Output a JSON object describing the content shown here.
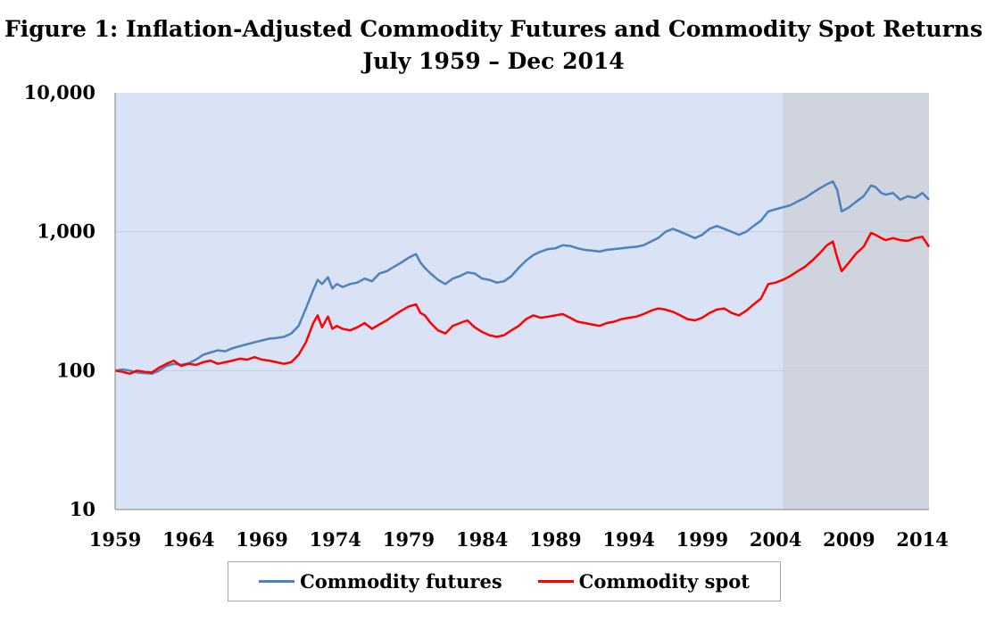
{
  "chart_data": {
    "type": "line",
    "title": "Figure 1: Inflation-Adjusted Commodity Futures and Commodity Spot Returns",
    "subtitle": "July 1959 – Dec 2014",
    "xlabel": "",
    "ylabel": "",
    "yscale": "log",
    "ylim": [
      10,
      10000
    ],
    "xlim": [
      1959.5,
      2014.95
    ],
    "y_ticks": [
      "10",
      "100",
      "1,000",
      "10,000"
    ],
    "y_tick_values": [
      10,
      100,
      1000,
      10000
    ],
    "x_ticks": [
      "1959",
      "1964",
      "1969",
      "1974",
      "1979",
      "1984",
      "1989",
      "1994",
      "1999",
      "2004",
      "2009",
      "2014"
    ],
    "x_tick_values": [
      1959.5,
      1964.5,
      1969.5,
      1974.5,
      1979.5,
      1984.5,
      1989.5,
      1994.5,
      1999.5,
      2004.5,
      2009.5,
      2014.5
    ],
    "shaded_region": {
      "from": 2005,
      "to": 2014.95,
      "color": "#cfd4df"
    },
    "plot_background": "#dae3f5",
    "gridlines": true,
    "legend_position": "bottom",
    "series": [
      {
        "name": "Commodity futures",
        "color": "#4f81bd",
        "x": [
          1959.5,
          1960.0,
          1960.5,
          1961.0,
          1961.5,
          1962.0,
          1962.5,
          1963.0,
          1963.5,
          1964.0,
          1964.5,
          1965.0,
          1965.5,
          1966.0,
          1966.5,
          1967.0,
          1967.5,
          1968.0,
          1968.5,
          1969.0,
          1969.5,
          1970.0,
          1970.5,
          1971.0,
          1971.5,
          1972.0,
          1972.5,
          1973.0,
          1973.3,
          1973.6,
          1974.0,
          1974.3,
          1974.6,
          1975.0,
          1975.5,
          1976.0,
          1976.5,
          1977.0,
          1977.5,
          1978.0,
          1978.5,
          1979.0,
          1979.5,
          1980.0,
          1980.3,
          1980.6,
          1981.0,
          1981.5,
          1982.0,
          1982.5,
          1983.0,
          1983.5,
          1984.0,
          1984.5,
          1985.0,
          1985.5,
          1986.0,
          1986.5,
          1987.0,
          1987.5,
          1988.0,
          1988.5,
          1989.0,
          1989.5,
          1990.0,
          1990.5,
          1991.0,
          1991.5,
          1992.0,
          1992.5,
          1993.0,
          1993.5,
          1994.0,
          1994.5,
          1995.0,
          1995.5,
          1996.0,
          1996.5,
          1997.0,
          1997.5,
          1998.0,
          1998.5,
          1999.0,
          1999.5,
          2000.0,
          2000.5,
          2001.0,
          2001.5,
          2002.0,
          2002.5,
          2003.0,
          2003.5,
          2004.0,
          2004.5,
          2005.0,
          2005.5,
          2006.0,
          2006.5,
          2007.0,
          2007.5,
          2008.0,
          2008.4,
          2008.7,
          2009.0,
          2009.5,
          2010.0,
          2010.5,
          2011.0,
          2011.3,
          2011.7,
          2012.0,
          2012.5,
          2013.0,
          2013.5,
          2014.0,
          2014.5,
          2014.95
        ],
        "values": [
          100,
          102,
          100,
          97,
          96,
          95,
          100,
          108,
          112,
          110,
          113,
          120,
          130,
          135,
          140,
          138,
          145,
          150,
          155,
          160,
          165,
          170,
          172,
          175,
          185,
          210,
          280,
          380,
          450,
          420,
          470,
          390,
          420,
          400,
          420,
          430,
          460,
          440,
          500,
          520,
          560,
          600,
          650,
          690,
          600,
          550,
          500,
          450,
          420,
          460,
          480,
          510,
          500,
          460,
          450,
          430,
          440,
          480,
          550,
          620,
          680,
          720,
          750,
          760,
          800,
          790,
          760,
          740,
          730,
          720,
          740,
          750,
          760,
          770,
          780,
          800,
          850,
          900,
          1000,
          1050,
          1000,
          950,
          900,
          950,
          1050,
          1100,
          1050,
          1000,
          950,
          1000,
          1100,
          1200,
          1400,
          1450,
          1500,
          1550,
          1650,
          1750,
          1900,
          2050,
          2200,
          2300,
          2000,
          1400,
          1500,
          1650,
          1800,
          2150,
          2100,
          1900,
          1850,
          1900,
          1700,
          1800,
          1750,
          1900,
          1700
        ]
      },
      {
        "name": "Commodity spot",
        "color": "#ff0000",
        "x": [
          1959.5,
          1960.0,
          1960.5,
          1961.0,
          1961.5,
          1962.0,
          1962.5,
          1963.0,
          1963.5,
          1964.0,
          1964.5,
          1965.0,
          1965.5,
          1966.0,
          1966.5,
          1967.0,
          1967.5,
          1968.0,
          1968.5,
          1969.0,
          1969.5,
          1970.0,
          1970.5,
          1971.0,
          1971.5,
          1972.0,
          1972.5,
          1973.0,
          1973.3,
          1973.6,
          1974.0,
          1974.3,
          1974.6,
          1975.0,
          1975.5,
          1976.0,
          1976.5,
          1977.0,
          1977.5,
          1978.0,
          1978.5,
          1979.0,
          1979.5,
          1980.0,
          1980.3,
          1980.6,
          1981.0,
          1981.5,
          1982.0,
          1982.5,
          1983.0,
          1983.5,
          1984.0,
          1984.5,
          1985.0,
          1985.5,
          1986.0,
          1986.5,
          1987.0,
          1987.5,
          1988.0,
          1988.5,
          1989.0,
          1989.5,
          1990.0,
          1990.5,
          1991.0,
          1991.5,
          1992.0,
          1992.5,
          1993.0,
          1993.5,
          1994.0,
          1994.5,
          1995.0,
          1995.5,
          1996.0,
          1996.5,
          1997.0,
          1997.5,
          1998.0,
          1998.5,
          1999.0,
          1999.5,
          2000.0,
          2000.5,
          2001.0,
          2001.5,
          2002.0,
          2002.5,
          2003.0,
          2003.5,
          2004.0,
          2004.5,
          2005.0,
          2005.5,
          2006.0,
          2006.5,
          2007.0,
          2007.5,
          2008.0,
          2008.4,
          2008.7,
          2009.0,
          2009.5,
          2010.0,
          2010.5,
          2011.0,
          2011.3,
          2011.7,
          2012.0,
          2012.5,
          2013.0,
          2013.5,
          2014.0,
          2014.5,
          2014.95
        ],
        "values": [
          100,
          98,
          95,
          100,
          98,
          97,
          105,
          112,
          118,
          108,
          112,
          110,
          115,
          118,
          112,
          115,
          118,
          122,
          120,
          125,
          120,
          118,
          115,
          112,
          115,
          130,
          160,
          220,
          250,
          205,
          245,
          200,
          210,
          200,
          195,
          205,
          220,
          200,
          215,
          230,
          250,
          270,
          290,
          300,
          260,
          250,
          220,
          195,
          185,
          210,
          220,
          230,
          205,
          190,
          180,
          175,
          180,
          195,
          210,
          235,
          250,
          240,
          245,
          250,
          255,
          240,
          225,
          220,
          215,
          210,
          220,
          225,
          235,
          240,
          245,
          255,
          270,
          280,
          275,
          265,
          250,
          235,
          230,
          240,
          260,
          275,
          280,
          260,
          250,
          270,
          300,
          330,
          420,
          430,
          450,
          480,
          520,
          560,
          620,
          700,
          800,
          850,
          650,
          520,
          600,
          700,
          780,
          980,
          950,
          900,
          870,
          900,
          870,
          860,
          900,
          920,
          780
        ]
      }
    ]
  },
  "titles": {
    "line1": "Figure 1: Inflation-Adjusted Commodity Futures and Commodity Spot Returns",
    "line2": "July 1959 – Dec 2014"
  },
  "legend": {
    "futures_label": "Commodity futures",
    "spot_label": "Commodity spot",
    "futures_color": "#4f81bd",
    "spot_color": "#ff0000"
  }
}
